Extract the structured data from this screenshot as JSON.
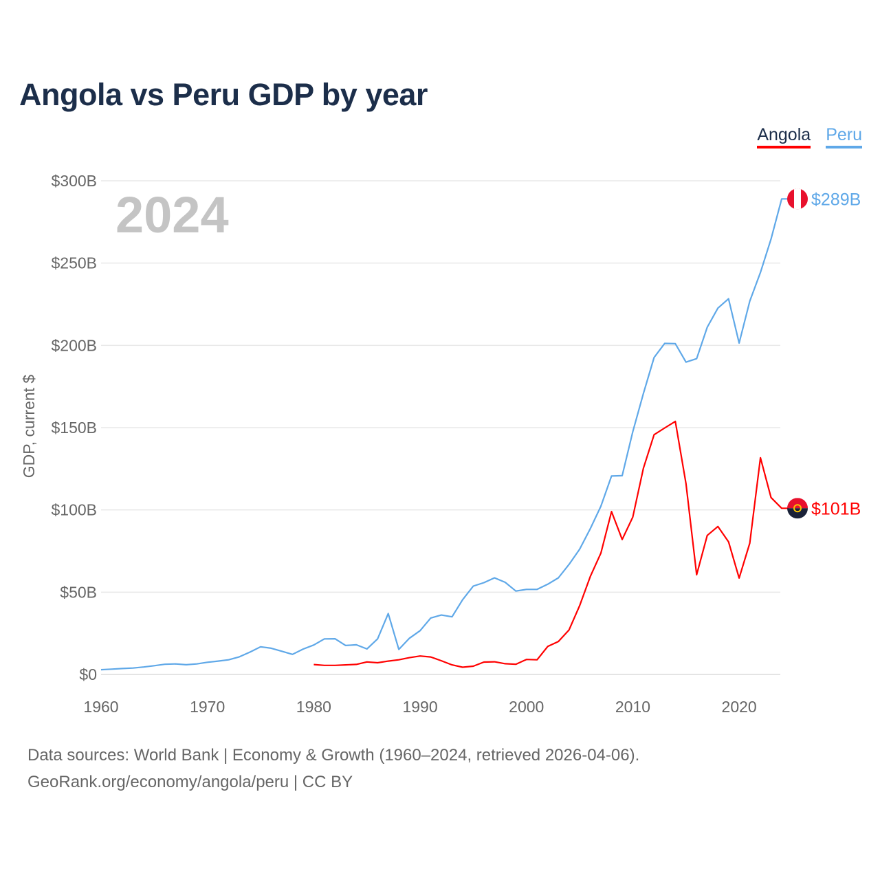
{
  "chart_data": {
    "type": "line",
    "title": "Angola vs Peru GDP by year",
    "ylabel": "GDP, current $",
    "xlabel": "",
    "xlim": [
      1960,
      2024
    ],
    "ylim": [
      0,
      300
    ],
    "y_unit": "billion USD",
    "grid": true,
    "legend_placement": "top-right",
    "x_ticks": [
      "1960",
      "1970",
      "1980",
      "1990",
      "2000",
      "2010",
      "2020"
    ],
    "y_ticks": [
      "$0",
      "$50B",
      "$100B",
      "$150B",
      "$200B",
      "$250B",
      "$300B"
    ],
    "year_watermark": "2024",
    "series": [
      {
        "name": "Angola",
        "color": "#ff0000",
        "end_label": "$101B",
        "x": [
          1980,
          1981,
          1982,
          1983,
          1984,
          1985,
          1986,
          1987,
          1988,
          1989,
          1990,
          1991,
          1992,
          1993,
          1994,
          1995,
          1996,
          1997,
          1998,
          1999,
          2000,
          2001,
          2002,
          2003,
          2004,
          2005,
          2006,
          2007,
          2008,
          2009,
          2010,
          2011,
          2012,
          2013,
          2014,
          2015,
          2016,
          2017,
          2018,
          2019,
          2020,
          2021,
          2022,
          2023,
          2024
        ],
        "values": [
          6.0,
          5.5,
          5.5,
          5.8,
          6.1,
          7.6,
          7.1,
          8.1,
          8.9,
          10.2,
          11.2,
          10.6,
          8.3,
          5.8,
          4.4,
          5.0,
          7.5,
          7.7,
          6.5,
          6.2,
          9.1,
          8.9,
          17.0,
          20.0,
          27.0,
          41.8,
          59.5,
          73.7,
          99.0,
          82.0,
          95.6,
          125.4,
          145.7,
          149.8,
          153.8,
          116.0,
          60.6,
          84.5,
          89.9,
          80.6,
          58.6,
          79.8,
          131.7,
          107.5,
          101.0
        ]
      },
      {
        "name": "Peru",
        "color": "#5fa8e8",
        "end_label": "$289B",
        "x": [
          1960,
          1961,
          1962,
          1963,
          1964,
          1965,
          1966,
          1967,
          1968,
          1969,
          1970,
          1971,
          1972,
          1973,
          1974,
          1975,
          1976,
          1977,
          1978,
          1979,
          1980,
          1981,
          1982,
          1983,
          1984,
          1985,
          1986,
          1987,
          1988,
          1989,
          1990,
          1991,
          1992,
          1993,
          1994,
          1995,
          1996,
          1997,
          1998,
          1999,
          2000,
          2001,
          2002,
          2003,
          2004,
          2005,
          2006,
          2007,
          2008,
          2009,
          2010,
          2011,
          2012,
          2013,
          2014,
          2015,
          2016,
          2017,
          2018,
          2019,
          2020,
          2021,
          2022,
          2023,
          2024
        ],
        "values": [
          2.9,
          3.2,
          3.6,
          3.9,
          4.5,
          5.3,
          6.2,
          6.4,
          5.9,
          6.4,
          7.4,
          8.1,
          8.9,
          10.7,
          13.6,
          16.8,
          15.9,
          14.1,
          12.2,
          15.4,
          17.9,
          21.6,
          21.7,
          17.6,
          18.0,
          15.5,
          21.6,
          37.0,
          15.2,
          22.0,
          26.6,
          34.3,
          36.1,
          35.0,
          45.4,
          53.7,
          55.8,
          58.7,
          56.0,
          50.7,
          51.7,
          51.7,
          54.8,
          58.7,
          66.8,
          76.1,
          88.6,
          102.2,
          120.6,
          120.8,
          147.5,
          170.8,
          192.6,
          201.2,
          201.0,
          189.8,
          191.9,
          211.0,
          222.6,
          228.3,
          201.4,
          226.9,
          244.3,
          264.6,
          289.0
        ]
      }
    ]
  },
  "footer": {
    "line1": "Data sources: World Bank | Economy & Growth (1960–2024, retrieved 2026-04-06).",
    "line2": "GeoRank.org/economy/angola/peru | CC BY"
  }
}
